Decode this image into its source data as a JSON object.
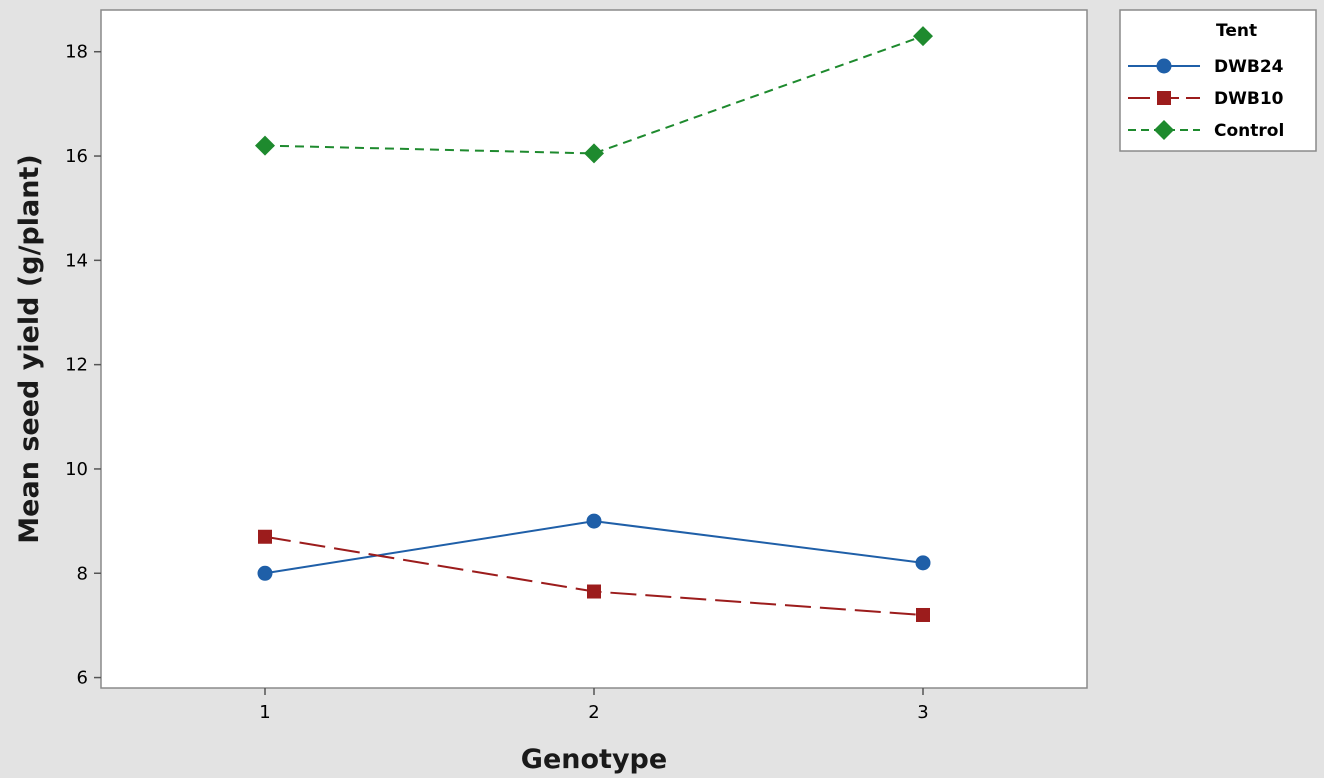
{
  "chart_data": {
    "type": "line",
    "title": "",
    "xlabel": "Genotype",
    "ylabel": "Mean seed yield (g/plant)",
    "categories": [
      "1",
      "2",
      "3"
    ],
    "ylim": [
      5.8,
      18.8
    ],
    "yticks": [
      6,
      8,
      10,
      12,
      14,
      16,
      18
    ],
    "grid": false,
    "legend": {
      "title": "Tent",
      "position": "outside-top-right"
    },
    "series": [
      {
        "name": "DWB24",
        "values": [
          8.0,
          9.0,
          8.2
        ],
        "color": "#1f5fa8",
        "marker": "circle",
        "line_style": "solid"
      },
      {
        "name": "DWB10",
        "values": [
          8.7,
          7.65,
          7.2
        ],
        "color": "#9c1c1c",
        "marker": "square",
        "line_style": "long-dash"
      },
      {
        "name": "Control",
        "values": [
          16.2,
          16.05,
          18.3
        ],
        "color": "#1e8a2e",
        "marker": "diamond",
        "line_style": "short-dash"
      }
    ]
  }
}
